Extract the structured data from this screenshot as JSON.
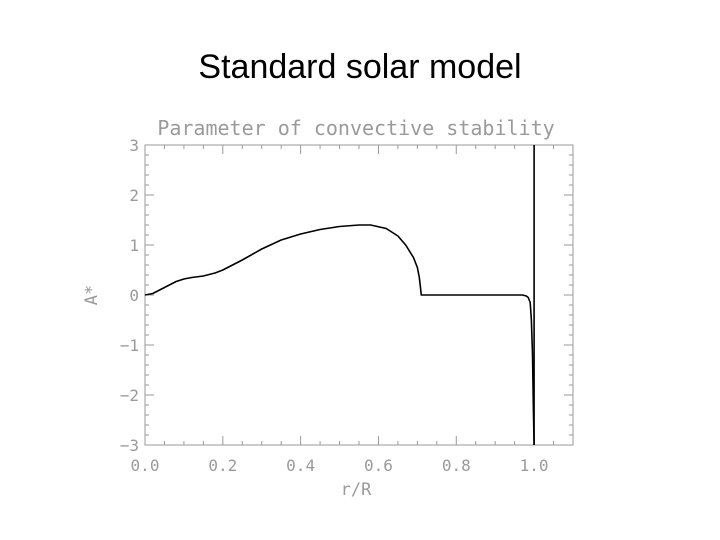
{
  "slide": {
    "title": "Standard solar model"
  },
  "chart_data": {
    "type": "line",
    "title": "Parameter of convective stability",
    "xlabel": "r/R",
    "ylabel": "A*",
    "xlim": [
      0.0,
      1.1
    ],
    "ylim": [
      -3,
      3
    ],
    "xticks": [
      {
        "value": 0.0,
        "label": "0.0"
      },
      {
        "value": 0.2,
        "label": "0.2"
      },
      {
        "value": 0.4,
        "label": "0.4"
      },
      {
        "value": 0.6,
        "label": "0.6"
      },
      {
        "value": 0.8,
        "label": "0.8"
      },
      {
        "value": 1.0,
        "label": "1.0"
      }
    ],
    "yticks": [
      {
        "value": 3,
        "label": "3"
      },
      {
        "value": 2,
        "label": "2"
      },
      {
        "value": 1,
        "label": "1"
      },
      {
        "value": 0,
        "label": "0"
      },
      {
        "value": -1,
        "label": "−1"
      },
      {
        "value": -2,
        "label": "−2"
      },
      {
        "value": -3,
        "label": "−3"
      }
    ],
    "grid": false,
    "colors": {
      "axes": "#9a9a9a",
      "line": "#000000"
    },
    "series": [
      {
        "x": [
          0.0,
          0.02,
          0.05,
          0.08,
          0.1,
          0.12,
          0.15,
          0.18,
          0.2,
          0.25,
          0.3,
          0.35,
          0.4,
          0.45,
          0.5,
          0.55,
          0.58,
          0.62,
          0.65,
          0.67,
          0.69,
          0.7,
          0.705,
          0.708,
          0.71,
          0.72,
          0.8,
          0.9,
          0.95,
          0.97,
          0.98,
          0.985,
          0.99,
          0.993,
          0.996,
          0.998,
          1.0
        ],
        "y": [
          0.0,
          0.03,
          0.15,
          0.27,
          0.32,
          0.35,
          0.38,
          0.44,
          0.5,
          0.7,
          0.92,
          1.1,
          1.22,
          1.31,
          1.37,
          1.4,
          1.4,
          1.33,
          1.18,
          1.0,
          0.75,
          0.55,
          0.35,
          0.15,
          0.0,
          0.0,
          0.0,
          0.0,
          0.0,
          0.0,
          -0.02,
          -0.05,
          -0.15,
          -0.5,
          -1.2,
          -2.2,
          -3.0
        ]
      }
    ],
    "vlines": [
      1.0
    ]
  }
}
